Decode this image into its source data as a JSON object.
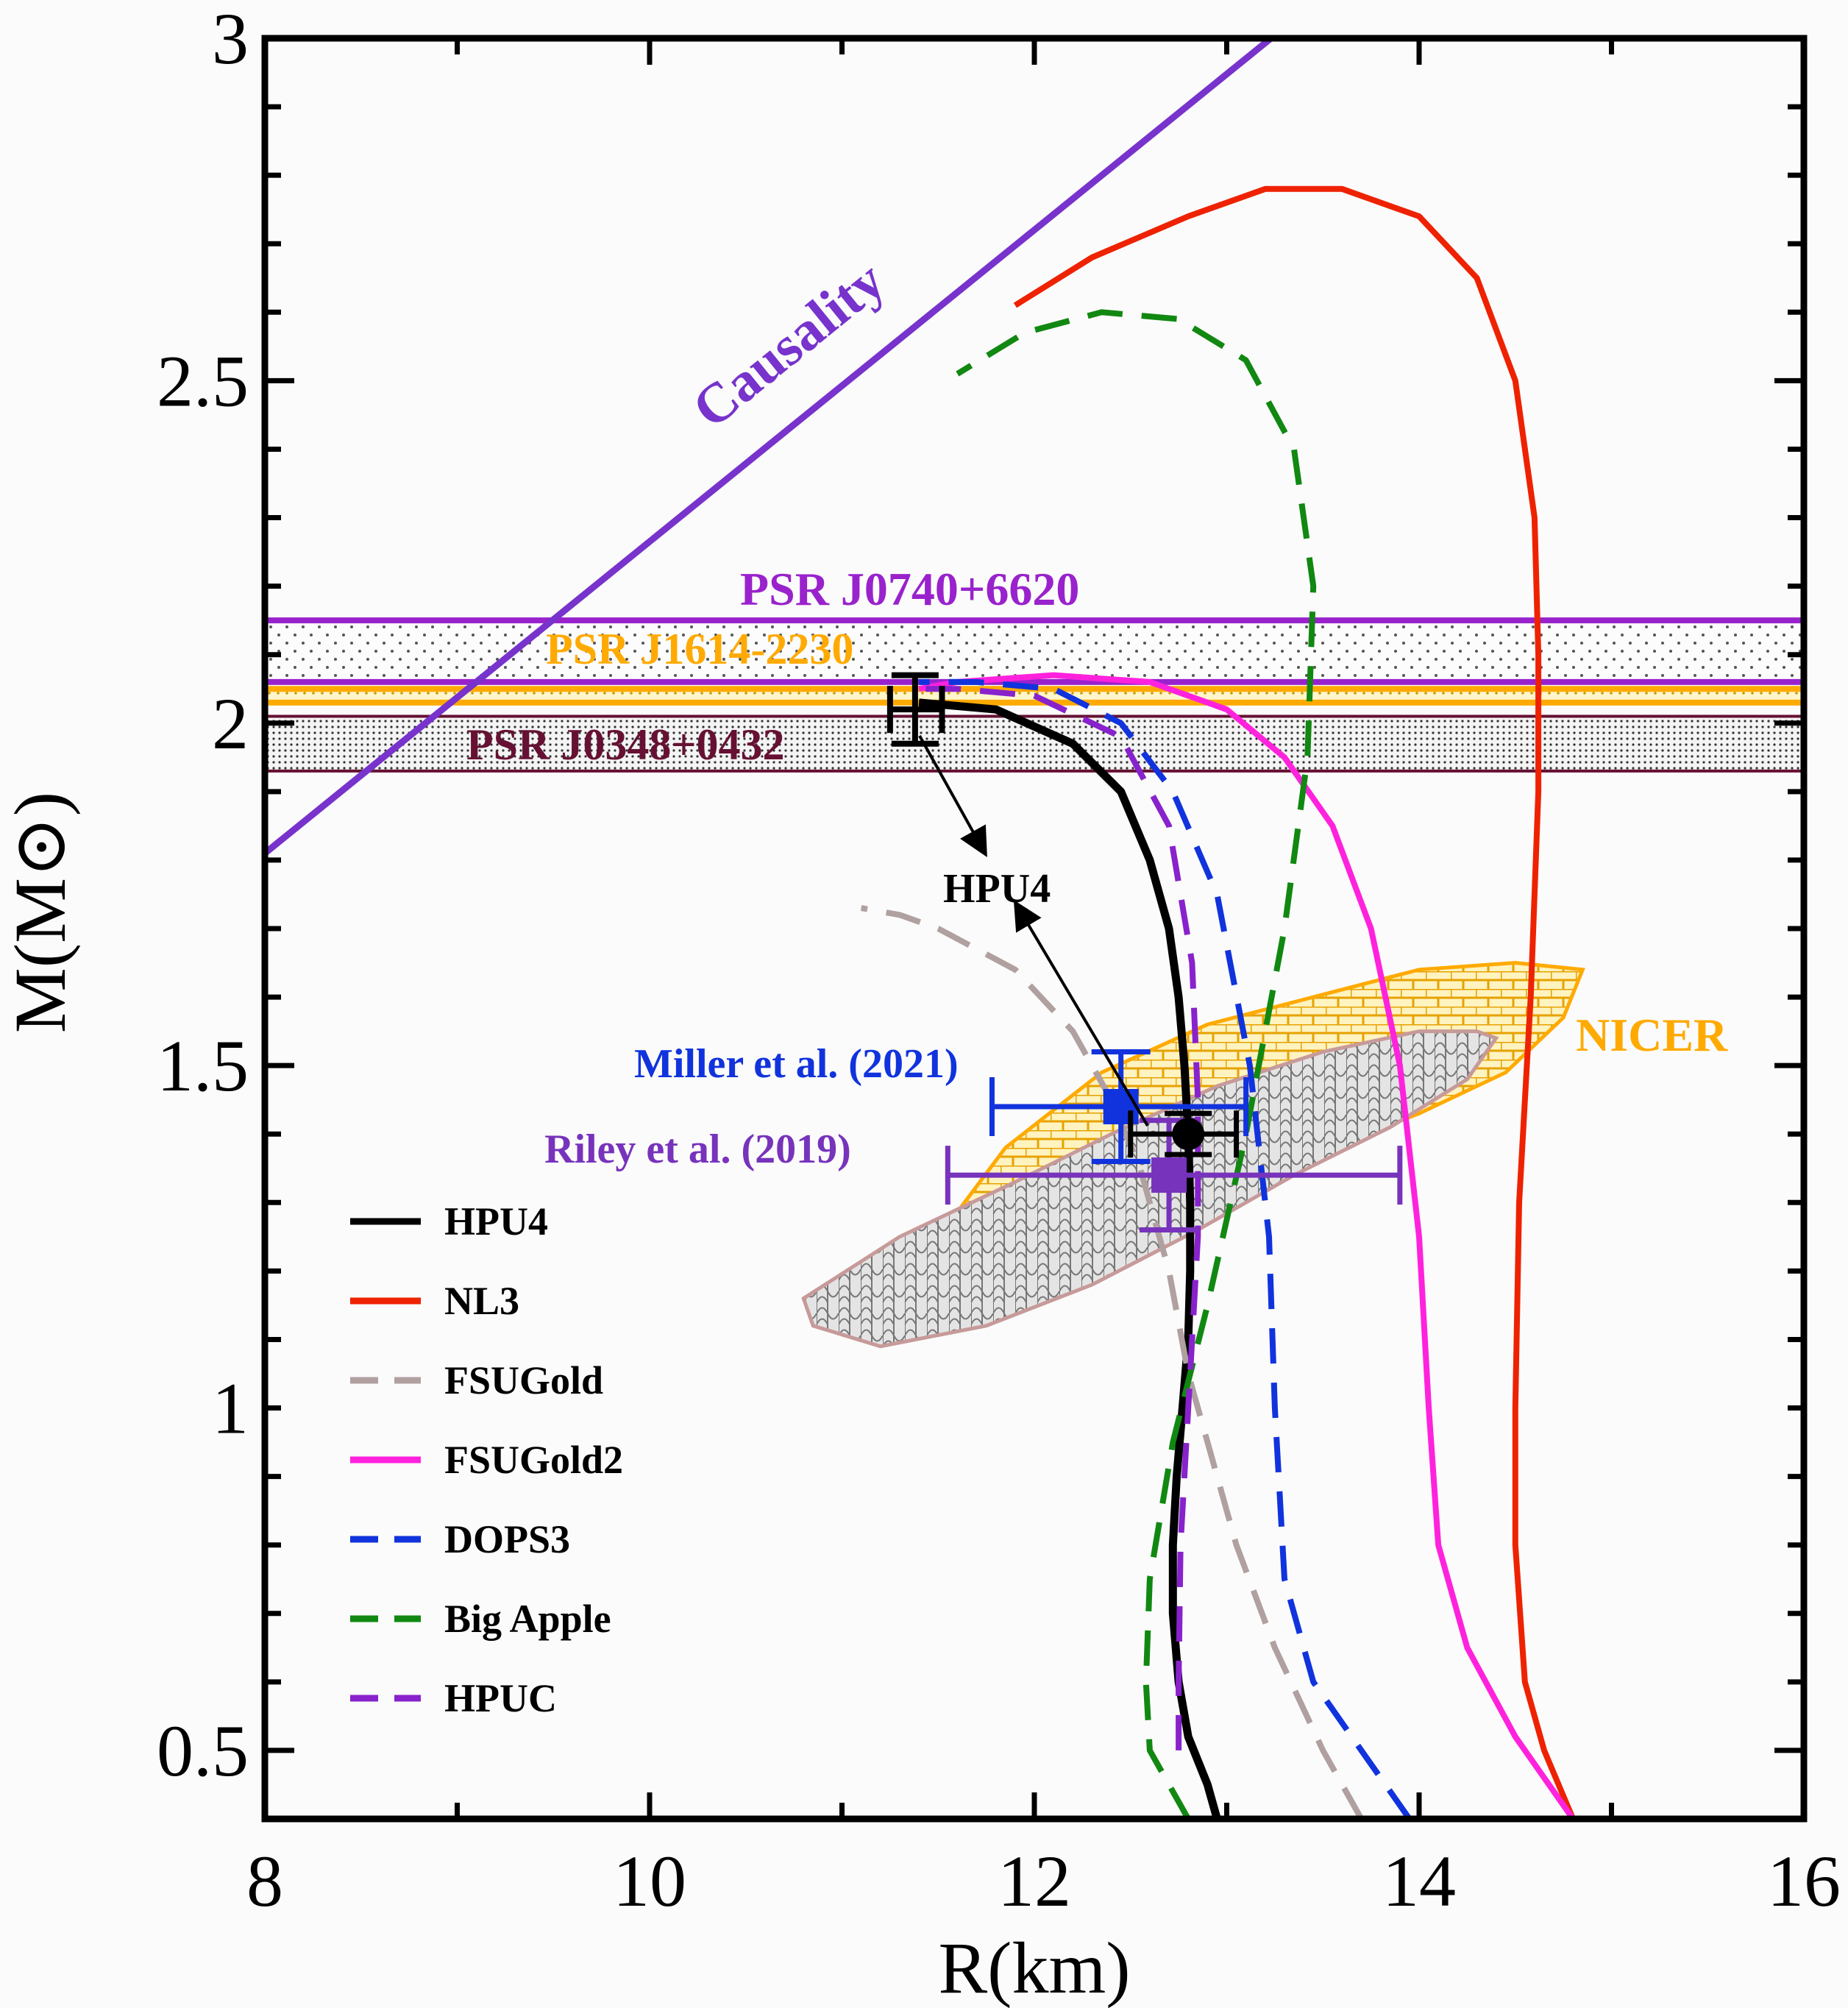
{
  "chart_data": {
    "type": "line",
    "xlabel": "R(km)",
    "ylabel": "M(M⊙)",
    "xlim": [
      8,
      16
    ],
    "ylim": [
      0.4,
      3.0
    ],
    "x_ticks": [
      "8",
      "10",
      "12",
      "14",
      "16"
    ],
    "y_ticks": [
      "0.5",
      "1",
      "1.5",
      "2",
      "2.5",
      "3"
    ],
    "colors": {
      "HPU4": "#000000",
      "NL3": "#ee2200",
      "FSUGold": "#b0a0a0",
      "FSUGold2": "#ff22dd",
      "DOPS3": "#1133dd",
      "Big Apple": "#118811",
      "HPUC": "#8822cc",
      "causality": "#7733cc",
      "psr_j0740": "#9922cc",
      "psr_j1614": "#ffaa00",
      "psr_j0348": "#661133",
      "nicer": "#ffaa00",
      "miller": "#1133dd",
      "riley": "#7733bb"
    },
    "series": [
      {
        "name": "HPU4",
        "dashed": false,
        "points": [
          [
            12.95,
            0.4
          ],
          [
            12.9,
            0.45
          ],
          [
            12.8,
            0.52
          ],
          [
            12.75,
            0.6
          ],
          [
            12.72,
            0.7
          ],
          [
            12.72,
            0.8
          ],
          [
            12.74,
            0.9
          ],
          [
            12.77,
            1.0
          ],
          [
            12.8,
            1.1
          ],
          [
            12.81,
            1.2
          ],
          [
            12.81,
            1.3
          ],
          [
            12.8,
            1.4
          ],
          [
            12.78,
            1.5
          ],
          [
            12.75,
            1.6
          ],
          [
            12.7,
            1.7
          ],
          [
            12.6,
            1.8
          ],
          [
            12.45,
            1.9
          ],
          [
            12.2,
            1.97
          ],
          [
            11.8,
            2.02
          ],
          [
            11.4,
            2.03
          ]
        ]
      },
      {
        "name": "NL3",
        "dashed": false,
        "points": [
          [
            14.8,
            0.4
          ],
          [
            14.65,
            0.5
          ],
          [
            14.55,
            0.6
          ],
          [
            14.5,
            0.8
          ],
          [
            14.5,
            1.0
          ],
          [
            14.52,
            1.3
          ],
          [
            14.58,
            1.6
          ],
          [
            14.62,
            1.9
          ],
          [
            14.62,
            2.1
          ],
          [
            14.6,
            2.3
          ],
          [
            14.5,
            2.5
          ],
          [
            14.3,
            2.65
          ],
          [
            14.0,
            2.74
          ],
          [
            13.6,
            2.78
          ],
          [
            13.2,
            2.78
          ],
          [
            12.8,
            2.74
          ],
          [
            12.3,
            2.68
          ],
          [
            11.9,
            2.61
          ]
        ]
      },
      {
        "name": "FSUGold",
        "dashed": true,
        "points": [
          [
            13.7,
            0.4
          ],
          [
            13.5,
            0.5
          ],
          [
            13.25,
            0.65
          ],
          [
            13.05,
            0.8
          ],
          [
            12.9,
            0.95
          ],
          [
            12.8,
            1.05
          ],
          [
            12.7,
            1.2
          ],
          [
            12.55,
            1.35
          ],
          [
            12.4,
            1.45
          ],
          [
            12.2,
            1.55
          ],
          [
            11.9,
            1.64
          ],
          [
            11.5,
            1.7
          ],
          [
            11.3,
            1.72
          ],
          [
            11.1,
            1.73
          ]
        ]
      },
      {
        "name": "FSUGold2",
        "dashed": false,
        "points": [
          [
            14.8,
            0.4
          ],
          [
            14.5,
            0.52
          ],
          [
            14.25,
            0.65
          ],
          [
            14.1,
            0.8
          ],
          [
            14.05,
            1.0
          ],
          [
            14.0,
            1.25
          ],
          [
            13.9,
            1.5
          ],
          [
            13.75,
            1.7
          ],
          [
            13.55,
            1.85
          ],
          [
            13.3,
            1.95
          ],
          [
            13.0,
            2.02
          ],
          [
            12.6,
            2.06
          ],
          [
            12.1,
            2.07
          ],
          [
            11.6,
            2.06
          ],
          [
            11.4,
            2.05
          ]
        ]
      },
      {
        "name": "DOPS3",
        "dashed": true,
        "points": [
          [
            13.95,
            0.4
          ],
          [
            13.7,
            0.5
          ],
          [
            13.45,
            0.6
          ],
          [
            13.3,
            0.75
          ],
          [
            13.25,
            1.0
          ],
          [
            13.22,
            1.25
          ],
          [
            13.12,
            1.5
          ],
          [
            12.95,
            1.75
          ],
          [
            12.72,
            1.9
          ],
          [
            12.45,
            2.0
          ],
          [
            12.1,
            2.05
          ],
          [
            11.7,
            2.06
          ],
          [
            11.4,
            2.06
          ]
        ]
      },
      {
        "name": "Big Apple",
        "dashed": true,
        "points": [
          [
            12.8,
            0.4
          ],
          [
            12.6,
            0.5
          ],
          [
            12.58,
            0.6
          ],
          [
            12.6,
            0.75
          ],
          [
            12.72,
            0.95
          ],
          [
            12.9,
            1.15
          ],
          [
            13.1,
            1.4
          ],
          [
            13.3,
            1.7
          ],
          [
            13.42,
            1.95
          ],
          [
            13.45,
            2.2
          ],
          [
            13.35,
            2.4
          ],
          [
            13.1,
            2.53
          ],
          [
            12.75,
            2.59
          ],
          [
            12.35,
            2.6
          ],
          [
            11.95,
            2.57
          ],
          [
            11.6,
            2.51
          ]
        ]
      },
      {
        "name": "HPUC",
        "dashed": true,
        "points": [
          [
            12.75,
            0.5
          ],
          [
            12.75,
            0.6
          ],
          [
            12.76,
            0.8
          ],
          [
            12.8,
            1.0
          ],
          [
            12.85,
            1.25
          ],
          [
            12.85,
            1.45
          ],
          [
            12.82,
            1.65
          ],
          [
            12.7,
            1.85
          ],
          [
            12.45,
            1.98
          ],
          [
            12.0,
            2.04
          ],
          [
            11.6,
            2.05
          ],
          [
            11.4,
            2.05
          ]
        ]
      }
    ],
    "causality": {
      "label": "Causality",
      "points": [
        [
          8.0,
          1.81
        ],
        [
          13.23,
          3.0
        ]
      ]
    },
    "bands": [
      {
        "label": "PSR J0740+6620",
        "ymin": 2.06,
        "ymax": 2.15
      },
      {
        "label": "PSR J1614-2230",
        "ymin": 2.03,
        "ymax": 2.05
      },
      {
        "label": "PSR J0348+0432",
        "ymin": 1.93,
        "ymax": 2.01
      }
    ],
    "nicer": {
      "label": "NICER"
    },
    "miller": {
      "label": "Miller et  al. (2021)",
      "x": 12.45,
      "y": 1.44,
      "xerr": [
        11.78,
        13.1
      ],
      "yerr": [
        1.36,
        1.52
      ]
    },
    "riley": {
      "label": "Riley et  al. (2019)",
      "x": 12.7,
      "y": 1.34,
      "xerr": [
        11.55,
        13.9
      ],
      "yerr": [
        1.26,
        1.42
      ]
    },
    "hpu4_points": [
      {
        "x": 11.38,
        "y": 2.02,
        "xerr": [
          11.25,
          11.52
        ],
        "yerr": [
          1.97,
          2.07
        ]
      },
      {
        "x": 12.8,
        "y": 1.4,
        "xerr": [
          12.5,
          13.05
        ],
        "yerr": [
          1.37,
          1.43
        ]
      }
    ],
    "hpu4_annotation": "HPU4",
    "legend": [
      "HPU4",
      "NL3",
      "FSUGold",
      "FSUGold2",
      "DOPS3",
      "Big Apple",
      "HPUC"
    ]
  }
}
